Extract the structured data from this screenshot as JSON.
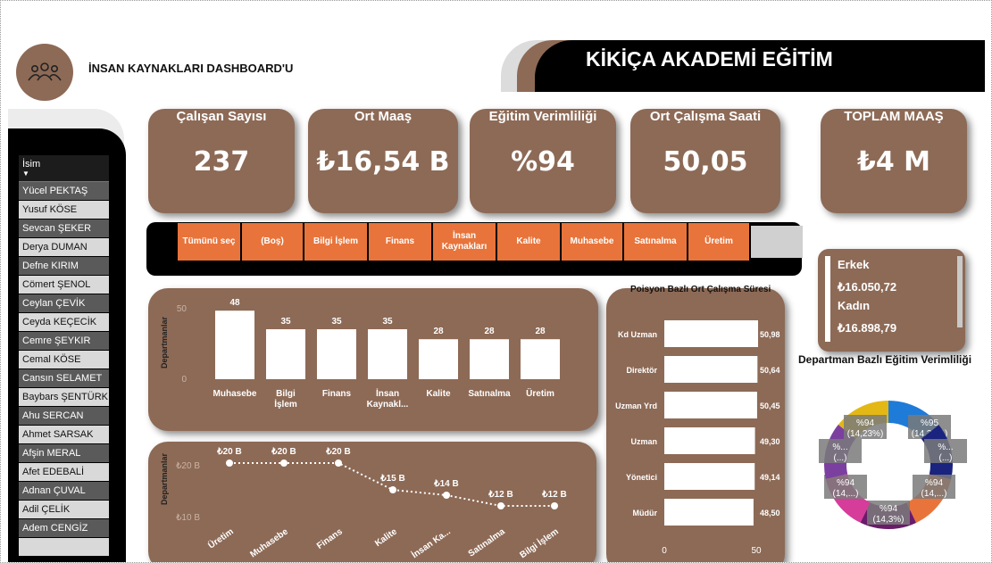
{
  "header": {
    "title": "İNSAN KAYNAKLARI DASHBOARD'U",
    "brand": "KİKİÇA AKADEMİ EĞİTİM",
    "logo_icon": "people-icon"
  },
  "slicer": {
    "header": "İsim",
    "items": [
      "Yücel PEKTAŞ",
      "Yusuf KÖSE",
      "Sevcan ŞEKER",
      "Derya DUMAN",
      "Defne KIRIM",
      "Cömert ŞENOL",
      "Ceylan ÇEVİK",
      "Ceyda KEÇECİK",
      "Cemre ŞEYKIR",
      "Cemal KÖSE",
      "Cansın SELAMET",
      "Baybars ŞENTÜRK",
      "Ahu SERCAN",
      "Ahmet SARSAK",
      "Afşin MERAL",
      "Afet EDEBALİ",
      "Adnan ÇUVAL",
      "Adil ÇELİK",
      "Adem CENGİZ"
    ]
  },
  "kpis": {
    "employees": {
      "title": "Çalışan Sayısı",
      "value": "237"
    },
    "salary": {
      "title": "Ort Maaş",
      "value": "₺16,54 B"
    },
    "training": {
      "title": "Eğitim Verimliliği",
      "value": "%94"
    },
    "hours": {
      "title": "Ort Çalışma Saati",
      "value": "50,05"
    },
    "total": {
      "title": "TOPLAM MAAŞ",
      "value": "₺4 M"
    }
  },
  "departments": {
    "buttons": [
      "Tümünü seç",
      "(Boş)",
      "Bilgi İşlem",
      "Finans",
      "İnsan Kaynakları",
      "Kalite",
      "Muhasebe",
      "Satınalma",
      "Üretim"
    ]
  },
  "gender": {
    "male_label": "Erkek",
    "male_value": "₺16.050,72",
    "female_label": "Kadın",
    "female_value": "₺16.898,79"
  },
  "chart_titles": {
    "position_hours": "Poisyon Bazlı Ort Çalışma Süresi",
    "dept_training": "Departman Bazlı Eğitim Verimliliği"
  },
  "chart_data": [
    {
      "type": "bar",
      "ylabel": "Departmanlar",
      "ylim": [
        0,
        50
      ],
      "yticks": [
        "50",
        "0"
      ],
      "categories": [
        "Muhasebe",
        "Bilgi İşlem",
        "Finans",
        "İnsan Kaynakl...",
        "Kalite",
        "Satınalma",
        "Üretim"
      ],
      "values": [
        48,
        35,
        35,
        35,
        28,
        28,
        28
      ],
      "labels": [
        "48",
        "35",
        "35",
        "35",
        "28",
        "28",
        "28"
      ],
      "color": "#ffffff"
    },
    {
      "type": "line",
      "ylabel": "Departmanlar",
      "yticks": [
        "₺20 B",
        "₺10 B"
      ],
      "ylim": [
        10,
        20
      ],
      "categories": [
        "Üretim",
        "Muhasebe",
        "Finans",
        "Kalite",
        "İnsan Ka...",
        "Satınalma",
        "Bilgi İşlem"
      ],
      "values": [
        20,
        20,
        20,
        15,
        14,
        12,
        12
      ],
      "labels": [
        "₺20 B",
        "₺20 B",
        "₺20 B",
        "₺15 B",
        "₺14 B",
        "₺12 B",
        "₺12 B"
      ],
      "color": "#ffffff"
    },
    {
      "type": "bar",
      "orientation": "horizontal",
      "title": "Poisyon Bazlı Ort Çalışma Süresi",
      "categories": [
        "Kd Uzman",
        "Direktör",
        "Uzman Yrd",
        "Uzman",
        "Yönetici",
        "Müdür"
      ],
      "values": [
        50.98,
        50.64,
        50.45,
        49.3,
        49.14,
        48.5
      ],
      "labels": [
        "50,98",
        "50,64",
        "50,45",
        "49,30",
        "49,14",
        "48,50"
      ],
      "xlim": [
        0,
        50
      ],
      "xticks": [
        "0",
        "50"
      ],
      "color": "#ffffff"
    },
    {
      "type": "pie",
      "title": "Departman Bazlı Eğitim Verimliliği",
      "slices": [
        {
          "value": 14.33,
          "label": "%95 (14,33%)",
          "color": "#1f7bd8"
        },
        {
          "value": 14.28,
          "label": "%... (...)",
          "color": "#1a237e"
        },
        {
          "value": 14.28,
          "label": "%94 (14,...)",
          "color": "#e8743b"
        },
        {
          "value": 14.3,
          "label": "%94 (14,3%)",
          "color": "#6a1b6a"
        },
        {
          "value": 14.28,
          "label": "%94 (14,...)",
          "color": "#d63c9a"
        },
        {
          "value": 14.28,
          "label": "%... (...)",
          "color": "#7b3fa0"
        },
        {
          "value": 14.23,
          "label": "%94 (14,23%)",
          "color": "#e3b814"
        }
      ]
    }
  ]
}
